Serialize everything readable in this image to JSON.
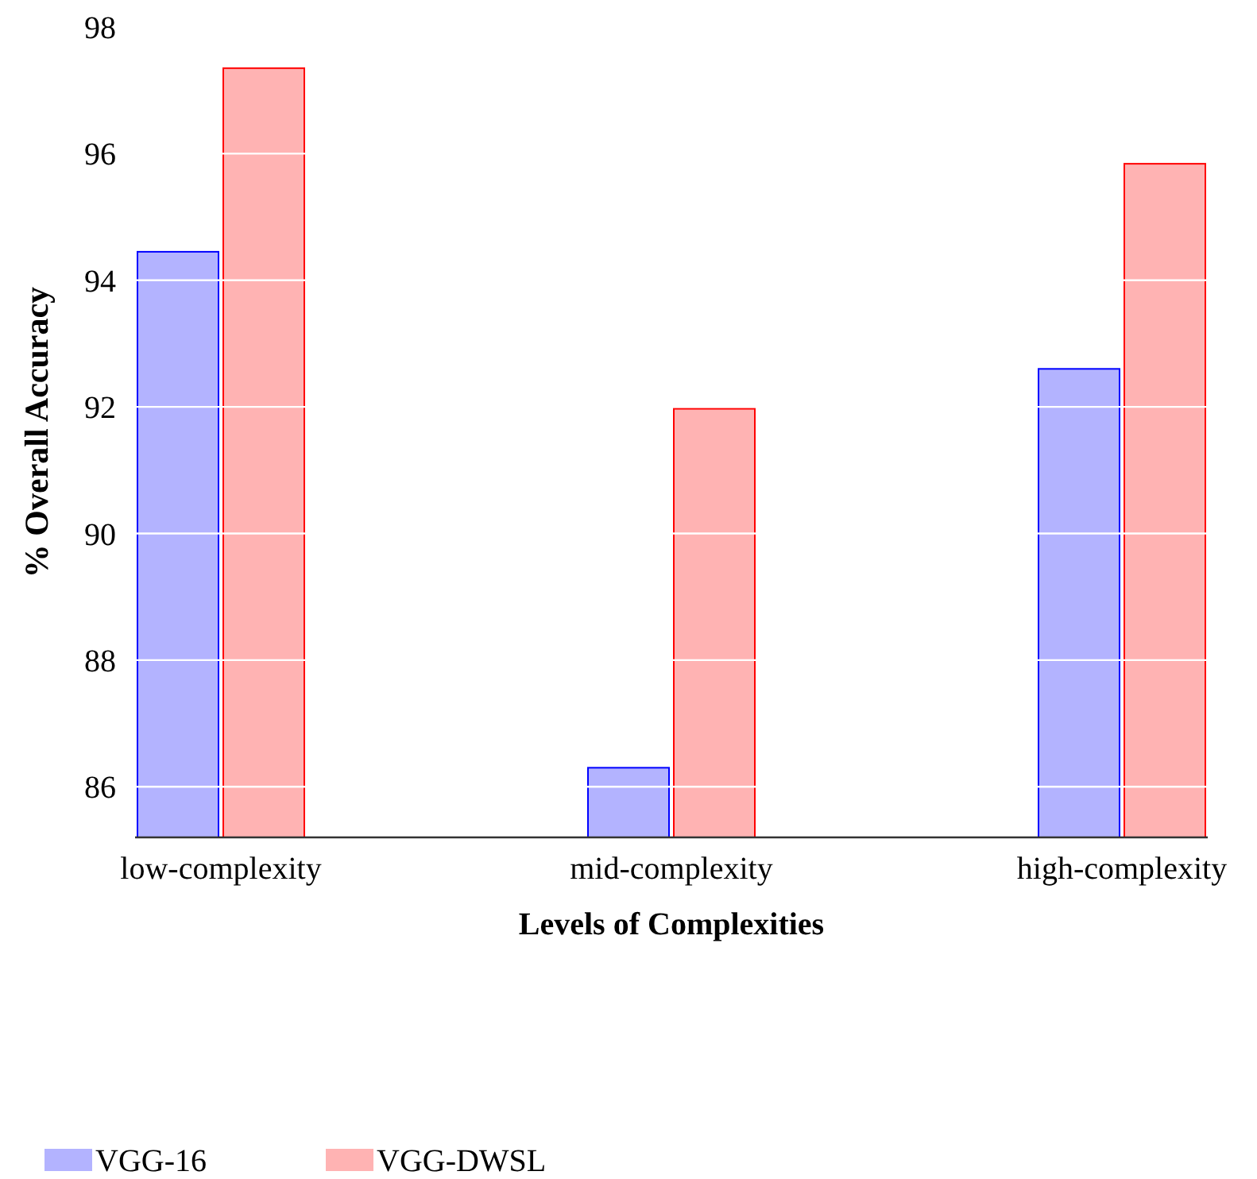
{
  "chart_data": {
    "type": "bar",
    "xlabel": "Levels of Complexities",
    "ylabel": "% Overall Accuracy",
    "categories": [
      "low-complexity",
      "mid-complexity",
      "high-complexity"
    ],
    "series": [
      {
        "name": "VGG-16",
        "color": "#b3b3ff",
        "values": [
          94.45,
          86.3,
          92.6
        ]
      },
      {
        "name": "VGG-DWSL",
        "color": "#ffb3b3",
        "values": [
          97.35,
          91.97,
          95.84
        ]
      }
    ],
    "ylim": [
      85.2,
      98
    ],
    "yticks": [
      86,
      88,
      90,
      92,
      94,
      96,
      98
    ],
    "grid": "y",
    "legend": "bottom left"
  }
}
